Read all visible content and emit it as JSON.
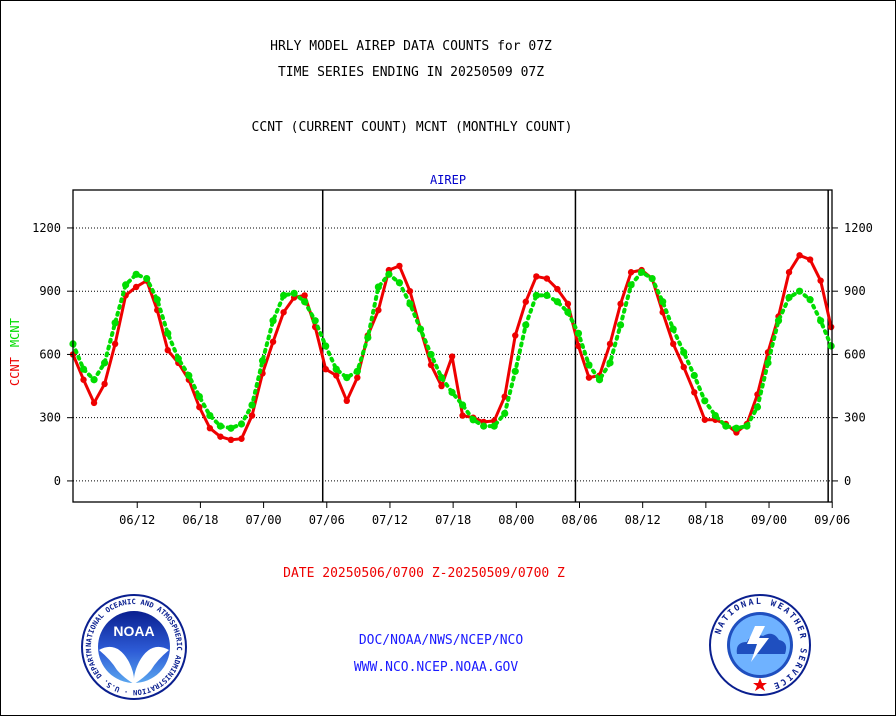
{
  "header": {
    "title_line1": "HRLY MODEL AIREP DATA COUNTS for 07Z",
    "title_line2": "TIME SERIES ENDING IN 20250509 07Z",
    "subtitle": "CCNT (CURRENT COUNT) MCNT (MONTHLY COUNT)"
  },
  "footer": {
    "date_range": "DATE 20250506/0700 Z-20250509/0700 Z",
    "org": "DOC/NOAA/NWS/NCEP/NCO",
    "url": "WWW.NCO.NCEP.NOAA.GOV"
  },
  "logos": {
    "noaa": {
      "text": "NOAA",
      "ring_text": "NATIONAL OCEANIC AND ATMOSPHERIC ADMINISTRATION · U.S. DEPARTMENT OF COMMERCE"
    },
    "nws": {
      "ring_text": "NATIONAL WEATHER SERVICE"
    }
  },
  "colors": {
    "ccnt": "#ee0000",
    "mcnt": "#00dd00",
    "axis_title": "#0000cc",
    "footer_blue": "#1a1aff"
  },
  "chart_data": {
    "type": "line",
    "title": "AIREP",
    "ylabel_parts": [
      {
        "text": "CCNT",
        "color": "#ee0000"
      },
      {
        "text": "MCNT",
        "color": "#00dd00"
      }
    ],
    "ylim": [
      -100,
      1380
    ],
    "y_ticks": [
      0,
      300,
      600,
      900,
      1200
    ],
    "x_ticks": [
      {
        "label": "06/12",
        "hour": 5
      },
      {
        "label": "06/18",
        "hour": 11
      },
      {
        "label": "07/00",
        "hour": 17
      },
      {
        "label": "07/06",
        "hour": 23
      },
      {
        "label": "07/12",
        "hour": 29
      },
      {
        "label": "07/18",
        "hour": 35
      },
      {
        "label": "08/00",
        "hour": 41
      },
      {
        "label": "08/06",
        "hour": 47
      },
      {
        "label": "08/12",
        "hour": 53
      },
      {
        "label": "08/18",
        "hour": 59
      },
      {
        "label": "09/00",
        "hour": 65
      },
      {
        "label": "09/06",
        "hour": 71
      }
    ],
    "day_boundaries": [
      24,
      48,
      72
    ],
    "grid": true,
    "series": [
      {
        "name": "CCNT",
        "color": "#ee0000",
        "values": [
          600,
          480,
          370,
          460,
          650,
          880,
          920,
          950,
          810,
          620,
          560,
          480,
          350,
          250,
          210,
          195,
          200,
          310,
          510,
          660,
          800,
          870,
          880,
          730,
          530,
          500,
          380,
          490,
          690,
          810,
          1000,
          1020,
          900,
          720,
          550,
          450,
          590,
          310,
          300,
          280,
          285,
          400,
          690,
          850,
          970,
          960,
          910,
          840,
          640,
          490,
          500,
          650,
          840,
          990,
          1000,
          960,
          800,
          650,
          540,
          420,
          290,
          290,
          270,
          230,
          270,
          410,
          610,
          780,
          990,
          1070,
          1050,
          950,
          730
        ]
      },
      {
        "name": "MCNT",
        "color": "#00dd00",
        "values": [
          650,
          530,
          480,
          560,
          750,
          930,
          980,
          960,
          860,
          700,
          580,
          500,
          400,
          310,
          260,
          250,
          270,
          360,
          570,
          760,
          880,
          890,
          850,
          760,
          640,
          530,
          490,
          520,
          680,
          920,
          980,
          940,
          840,
          720,
          600,
          490,
          420,
          360,
          290,
          260,
          260,
          320,
          520,
          740,
          880,
          880,
          850,
          800,
          700,
          550,
          480,
          560,
          740,
          930,
          990,
          960,
          850,
          720,
          610,
          500,
          380,
          310,
          260,
          250,
          260,
          350,
          560,
          760,
          870,
          900,
          860,
          760,
          640
        ]
      }
    ]
  }
}
